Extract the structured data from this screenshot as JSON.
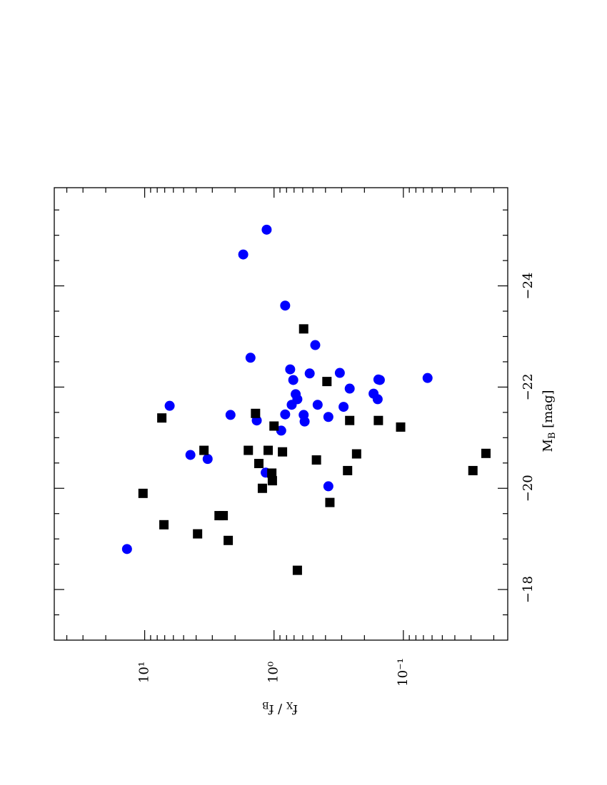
{
  "chart_data": {
    "type": "scatter",
    "xlabel": [
      "M",
      "B",
      " [mag]"
    ],
    "ylabel": [
      "f",
      "X",
      " / f",
      "B"
    ],
    "xlim": [
      -17,
      -25.94
    ],
    "ylim": [
      50,
      0.0156
    ],
    "ylog": true,
    "xticks": [
      {
        "value": -18,
        "label": "−18"
      },
      {
        "value": -20,
        "label": "−20"
      },
      {
        "value": -22,
        "label": "−22"
      },
      {
        "value": -24,
        "label": "−24"
      }
    ],
    "xminorticks": [
      -17.5,
      -18.5,
      -19,
      -19.5,
      -20.5,
      -21,
      -21.5,
      -22.5,
      -23,
      -23.5,
      -24.5,
      -25,
      -25.5
    ],
    "yticks": [
      {
        "value": 10,
        "label": "10¹"
      },
      {
        "value": 1,
        "label": "10⁰"
      },
      {
        "value": 0.1,
        "label": "10⁻¹"
      }
    ],
    "yminorticks": [
      40,
      30,
      20,
      9,
      8,
      7,
      6,
      5,
      4,
      3,
      2,
      0.9,
      0.8,
      0.7,
      0.6,
      0.5,
      0.4,
      0.3,
      0.2,
      0.09,
      0.08,
      0.07,
      0.06,
      0.05,
      0.04,
      0.03,
      0.02
    ],
    "series": [
      {
        "marker": "circle",
        "color": "#0000ff",
        "x": [
          -18.8,
          -21.63,
          -20.66,
          -20.58,
          -21.45,
          -24.62,
          -22.58,
          -21.34,
          -25.11,
          -20.31,
          -21.14,
          -23.61,
          -21.46,
          -22.35,
          -21.65,
          -22.14,
          -21.86,
          -21.76,
          -21.45,
          -21.32,
          -22.27,
          -22.83,
          -21.65,
          -21.41,
          -20.04,
          -22.28,
          -21.61,
          -21.97,
          -21.87,
          -21.76,
          -22.15,
          -22.14,
          -22.18
        ],
        "values": [
          13.7,
          6.41,
          4.43,
          3.26,
          2.17,
          1.73,
          1.52,
          1.36,
          1.14,
          1.16,
          0.88,
          0.82,
          0.82,
          0.75,
          0.73,
          0.71,
          0.68,
          0.66,
          0.59,
          0.58,
          0.53,
          0.48,
          0.46,
          0.38,
          0.38,
          0.31,
          0.29,
          0.26,
          0.17,
          0.158,
          0.156,
          0.152,
          0.065
        ]
      },
      {
        "marker": "square",
        "color": "#000000",
        "x": [
          -19.9,
          -21.39,
          -19.28,
          -19.1,
          -20.75,
          -19.46,
          -19.46,
          -18.97,
          -20.75,
          -21.48,
          -20.49,
          -20.0,
          -20.75,
          -20.3,
          -20.15,
          -21.23,
          -20.72,
          -18.38,
          -23.15,
          -20.56,
          -22.11,
          -19.72,
          -20.35,
          -21.34,
          -20.68,
          -21.34,
          -21.21,
          -20.35,
          -20.69
        ],
        "values": [
          10.3,
          7.37,
          7.1,
          3.9,
          3.48,
          2.66,
          2.47,
          2.26,
          1.58,
          1.39,
          1.31,
          1.23,
          1.11,
          1.04,
          1.03,
          1.0,
          0.86,
          0.66,
          0.59,
          0.47,
          0.39,
          0.37,
          0.27,
          0.26,
          0.23,
          0.156,
          0.105,
          0.029,
          0.023
        ]
      }
    ]
  }
}
